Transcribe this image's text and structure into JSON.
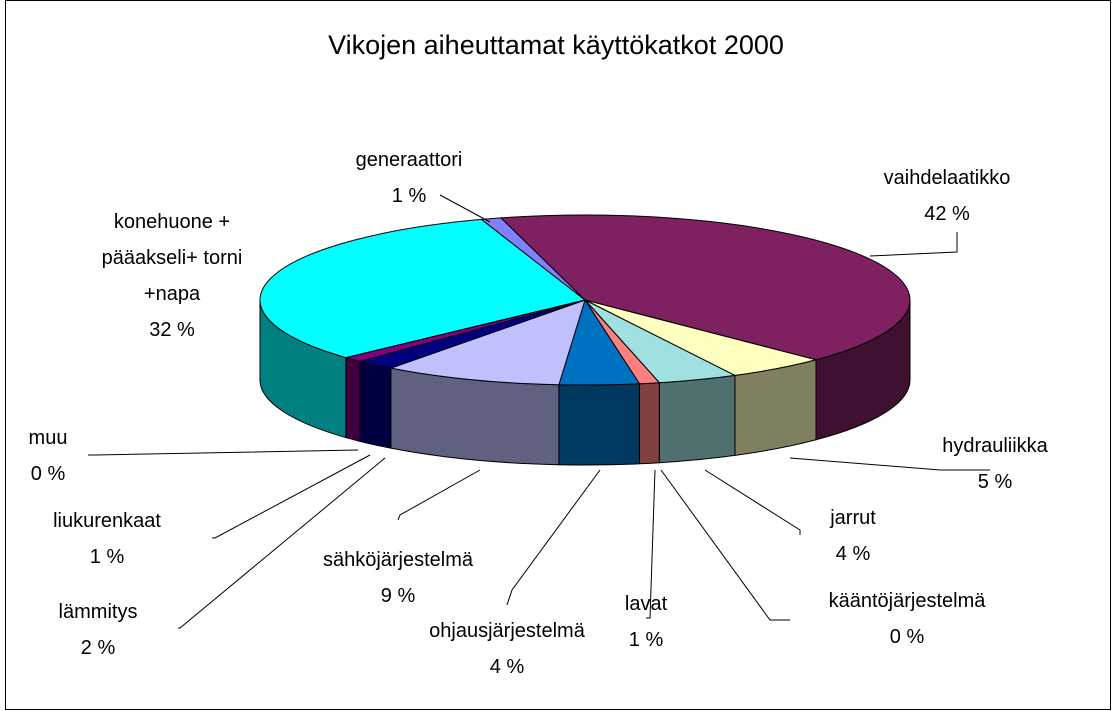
{
  "chart_data": {
    "type": "pie3d",
    "title": "Vikojen aiheuttamat käyttökatkot 2000",
    "categories": [
      "vaihdelaatikko",
      "hydrauliikka",
      "jarrut",
      "kääntöjärjestelmä",
      "lavat",
      "ohjausjärjestelmä",
      "sähköjärjestelmä",
      "lämmitys",
      "liukurenkaat",
      "muu",
      "konehuone + pääakseli+ torni +napa",
      "generaattori"
    ],
    "values": [
      42,
      5,
      4,
      0,
      1,
      4,
      9,
      2,
      1,
      0,
      32,
      1
    ],
    "value_labels": [
      "42 %",
      "5 %",
      "4 %",
      "0 %",
      "1 %",
      "4 %",
      "9 %",
      "2 %",
      "1 %",
      "0 %",
      "32 %",
      "1 %"
    ],
    "colors": [
      "#7f2060",
      "#ffffc0",
      "#a0e0e0",
      "#cc99ff",
      "#ff8080",
      "#0070c0",
      "#c0c0ff",
      "#000080",
      "#800080",
      "#cc0066",
      "#00ffff",
      "#8080ff"
    ]
  }
}
